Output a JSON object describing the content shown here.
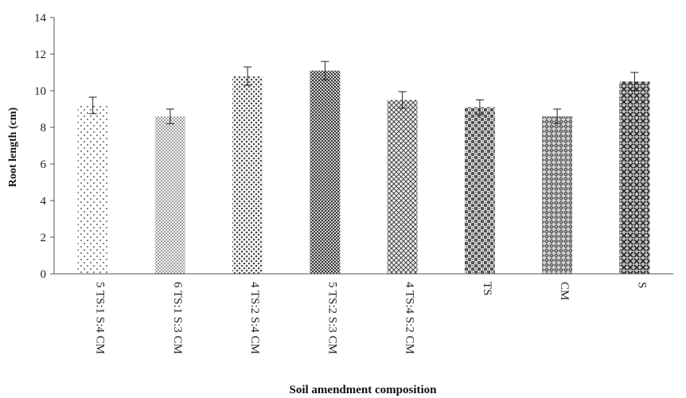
{
  "chart_data": {
    "type": "bar",
    "title": "",
    "xlabel": "Soil amendment composition",
    "ylabel": "Root length (cm)",
    "ylim": [
      0,
      14
    ],
    "yticks": [
      0,
      2,
      4,
      6,
      8,
      10,
      12,
      14
    ],
    "grid": false,
    "categories": [
      "5 TS:1 S:4 CM",
      "6 TS:1 S:3 CM",
      "4 TS:2 S:4 CM",
      "5 TS:2 S:3 CM",
      "4 TS:4 S:2 CM",
      "TS",
      "CM",
      "S"
    ],
    "values": [
      9.2,
      8.6,
      10.8,
      11.1,
      9.5,
      9.1,
      8.6,
      10.5
    ],
    "errors": [
      0.45,
      0.4,
      0.5,
      0.5,
      0.45,
      0.4,
      0.4,
      0.5
    ],
    "patterns": [
      "sparse-dots",
      "dots",
      "medium-dots",
      "dense-dots",
      "crosshatch",
      "checker",
      "weave",
      "diamond"
    ]
  }
}
